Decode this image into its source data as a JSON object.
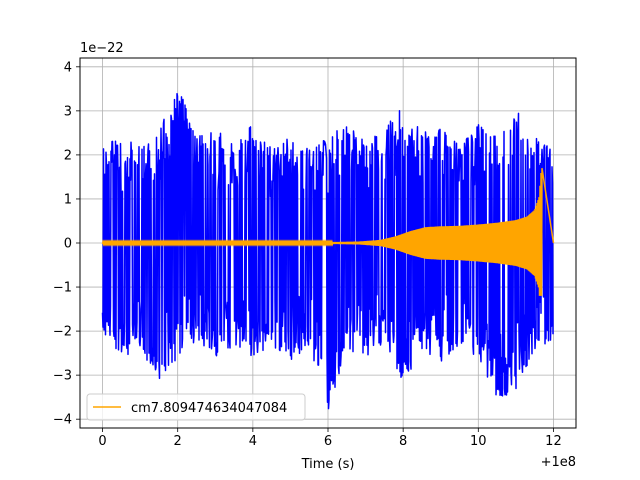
{
  "chart_data": {
    "type": "line",
    "title": "",
    "xlabel": "Time (s)",
    "ylabel": "",
    "x_offset_label": "+1e8",
    "y_scale_label": "1e−22",
    "xlim": [
      -0.6,
      12.6
    ],
    "ylim": [
      -4.2,
      4.2
    ],
    "x_ticks": [
      0,
      2,
      4,
      6,
      8,
      10,
      12
    ],
    "x_tick_labels": [
      "0",
      "2",
      "4",
      "6",
      "8",
      "10",
      "12"
    ],
    "y_ticks": [
      -4,
      -3,
      -2,
      -1,
      0,
      1,
      2,
      3,
      4
    ],
    "y_tick_labels": [
      "−4",
      "−3",
      "−2",
      "−1",
      "0",
      "1",
      "2",
      "3",
      "4"
    ],
    "grid": true,
    "legend_position": "lower-left",
    "series": [
      {
        "name": "",
        "color": "#0000ff",
        "description_values": "dense noise strain series",
        "x_range": [
          0,
          12
        ],
        "upper_envelope": [
          [
            0,
            2.2
          ],
          [
            0.5,
            2.4
          ],
          [
            1.0,
            2.2
          ],
          [
            1.5,
            2.6
          ],
          [
            2.0,
            3.6
          ],
          [
            2.5,
            2.4
          ],
          [
            3.0,
            2.6
          ],
          [
            3.5,
            2.2
          ],
          [
            4.0,
            2.7
          ],
          [
            4.5,
            2.2
          ],
          [
            5.0,
            2.5
          ],
          [
            5.5,
            2.1
          ],
          [
            6.0,
            2.4
          ],
          [
            6.5,
            2.7
          ],
          [
            7.0,
            2.3
          ],
          [
            7.5,
            2.6
          ],
          [
            8.0,
            3.1
          ],
          [
            8.5,
            2.5
          ],
          [
            9.0,
            2.6
          ],
          [
            9.5,
            2.2
          ],
          [
            10.0,
            2.7
          ],
          [
            10.5,
            2.4
          ],
          [
            11.0,
            3.2
          ],
          [
            11.5,
            2.4
          ],
          [
            12.0,
            2.1
          ]
        ],
        "lower_envelope": [
          [
            0,
            -2.1
          ],
          [
            0.5,
            -2.6
          ],
          [
            1.0,
            -2.4
          ],
          [
            1.5,
            -3.3
          ],
          [
            2.0,
            -2.6
          ],
          [
            2.5,
            -2.2
          ],
          [
            3.0,
            -2.7
          ],
          [
            3.5,
            -2.4
          ],
          [
            4.0,
            -2.6
          ],
          [
            4.5,
            -2.3
          ],
          [
            5.0,
            -2.7
          ],
          [
            5.5,
            -2.3
          ],
          [
            6.0,
            -3.8
          ],
          [
            6.5,
            -2.4
          ],
          [
            7.0,
            -2.6
          ],
          [
            7.5,
            -2.3
          ],
          [
            8.0,
            -3.2
          ],
          [
            8.5,
            -2.4
          ],
          [
            9.0,
            -2.7
          ],
          [
            9.5,
            -2.3
          ],
          [
            10.0,
            -2.6
          ],
          [
            10.5,
            -3.5
          ],
          [
            11.0,
            -3.4
          ],
          [
            11.5,
            -2.4
          ],
          [
            12.0,
            -2.2
          ]
        ]
      },
      {
        "name": "cm7.809474634047084",
        "color": "#ffa500",
        "description_values": "chirp waveform template",
        "envelope": [
          [
            0,
            0.02
          ],
          [
            6.0,
            0.02
          ],
          [
            6.8,
            0.03
          ],
          [
            7.4,
            0.07
          ],
          [
            7.8,
            0.15
          ],
          [
            8.2,
            0.27
          ],
          [
            8.6,
            0.36
          ],
          [
            9.0,
            0.38
          ],
          [
            9.5,
            0.39
          ],
          [
            10.0,
            0.42
          ],
          [
            10.5,
            0.46
          ],
          [
            11.0,
            0.52
          ],
          [
            11.3,
            0.6
          ],
          [
            11.5,
            0.75
          ],
          [
            11.62,
            1.05
          ],
          [
            11.68,
            1.7
          ]
        ],
        "lower_peak": -1.2,
        "end_x": 11.7,
        "tail_to": 12.0,
        "tail_value": 0.0
      }
    ]
  }
}
